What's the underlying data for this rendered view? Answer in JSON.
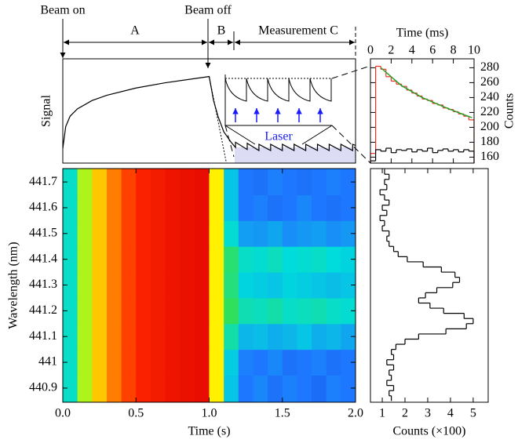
{
  "chart_data": [
    {
      "type": "line",
      "ylabel": "Signal",
      "annotations": {
        "beam_on": "Beam on",
        "beam_off": "Beam off",
        "a": "A",
        "b": "B",
        "c": "Measurement C"
      },
      "inset_label": "Laser",
      "color": "#000000",
      "xlim": [
        0,
        2
      ],
      "ylim": [
        0,
        1
      ],
      "x": [
        0,
        0.02,
        0.05,
        0.1,
        0.2,
        0.3,
        0.5,
        0.7,
        0.9,
        1.0,
        1.03,
        1.06,
        1.1,
        1.15,
        1.18,
        1.18,
        1.26,
        1.26,
        1.34,
        1.34,
        1.42,
        1.42,
        1.5,
        1.5,
        1.58,
        1.58,
        1.66,
        1.66,
        1.74,
        1.74,
        1.82,
        1.82,
        1.9,
        1.9,
        1.98,
        1.98,
        2.0
      ],
      "values": [
        0.14,
        0.35,
        0.45,
        0.52,
        0.6,
        0.65,
        0.72,
        0.77,
        0.81,
        0.83,
        0.6,
        0.45,
        0.3,
        0.2,
        0.15,
        0.2,
        0.13,
        0.19,
        0.12,
        0.18,
        0.12,
        0.18,
        0.12,
        0.18,
        0.12,
        0.18,
        0.12,
        0.18,
        0.12,
        0.18,
        0.12,
        0.18,
        0.12,
        0.18,
        0.12,
        0.18,
        0.17
      ]
    },
    {
      "type": "histogram",
      "xlabel": "Time (ms)",
      "ylabel": "Counts",
      "xaxis": "top",
      "yaxis": "right",
      "xlim": [
        0,
        10
      ],
      "ylim": [
        152,
        292
      ],
      "xticks": [
        0,
        2,
        4,
        6,
        8,
        10
      ],
      "yticks": [
        160,
        180,
        200,
        220,
        240,
        260,
        280
      ],
      "bins": [
        0,
        0.5,
        1,
        1.5,
        2,
        2.5,
        3,
        3.5,
        4,
        4.5,
        5,
        5.5,
        6,
        6.5,
        7,
        7.5,
        8,
        8.5,
        9,
        9.5,
        10
      ],
      "series": [
        {
          "color": "#e8321e",
          "values": [
            165,
            282,
            278,
            268,
            262,
            258,
            255,
            250,
            246,
            242,
            238,
            236,
            232,
            230,
            226,
            224,
            221,
            218,
            215,
            210
          ]
        },
        {
          "color": "#000000",
          "values": [
            155,
            170,
            168,
            172,
            166,
            170,
            169,
            171,
            167,
            170,
            168,
            172,
            166,
            169,
            171,
            168,
            170,
            167,
            170,
            168
          ]
        }
      ],
      "fit": {
        "color": "#2ca02c",
        "x": [
          1,
          3,
          5,
          7,
          9,
          9.8
        ],
        "values": [
          280,
          256,
          240,
          228,
          217,
          213
        ]
      }
    },
    {
      "type": "heatmap",
      "xlabel": "Time (s)",
      "ylabel": "Wavelength (nm)",
      "colormap": "jet",
      "xlim": [
        0,
        2
      ],
      "ylim": [
        440.845,
        441.752
      ],
      "xticks": [
        {
          "value": 0,
          "label": "0.0"
        },
        {
          "value": 0.5,
          "label": "0.5"
        },
        {
          "value": 1,
          "label": "1.0"
        },
        {
          "value": 1.5,
          "label": "1.5"
        },
        {
          "value": 2,
          "label": "2.0"
        }
      ],
      "yticks": [
        440.9,
        441.0,
        441.1,
        441.2,
        441.3,
        441.4,
        441.5,
        441.6,
        441.7
      ],
      "x_edges": [
        0,
        0.1,
        0.2,
        0.3,
        0.4,
        0.5,
        0.6,
        0.7,
        0.8,
        0.9,
        1.0,
        1.1,
        1.2,
        1.3,
        1.4,
        1.5,
        1.6,
        1.7,
        1.8,
        1.9,
        2.0
      ],
      "y_edges": [
        440.845,
        440.95,
        441.05,
        441.15,
        441.25,
        441.35,
        441.45,
        441.55,
        441.65,
        441.752
      ],
      "z": [
        [
          0.35,
          0.55,
          0.68,
          0.78,
          0.85,
          0.9,
          0.92,
          0.94,
          0.95,
          0.96,
          0.62,
          0.3,
          0.2,
          0.22,
          0.19,
          0.21,
          0.2,
          0.18,
          0.21,
          0.2
        ],
        [
          0.35,
          0.55,
          0.68,
          0.78,
          0.85,
          0.9,
          0.92,
          0.94,
          0.95,
          0.96,
          0.62,
          0.31,
          0.21,
          0.2,
          0.22,
          0.19,
          0.2,
          0.21,
          0.19,
          0.2
        ],
        [
          0.35,
          0.55,
          0.68,
          0.78,
          0.85,
          0.9,
          0.92,
          0.94,
          0.95,
          0.96,
          0.62,
          0.38,
          0.28,
          0.29,
          0.27,
          0.28,
          0.3,
          0.27,
          0.28,
          0.26
        ],
        [
          0.35,
          0.55,
          0.68,
          0.78,
          0.85,
          0.9,
          0.92,
          0.94,
          0.95,
          0.96,
          0.62,
          0.45,
          0.37,
          0.36,
          0.38,
          0.35,
          0.36,
          0.37,
          0.35,
          0.34
        ],
        [
          0.35,
          0.55,
          0.68,
          0.78,
          0.85,
          0.9,
          0.92,
          0.94,
          0.95,
          0.96,
          0.62,
          0.42,
          0.32,
          0.31,
          0.3,
          0.32,
          0.31,
          0.3,
          0.29,
          0.3
        ],
        [
          0.35,
          0.55,
          0.68,
          0.78,
          0.85,
          0.9,
          0.92,
          0.94,
          0.95,
          0.96,
          0.62,
          0.43,
          0.35,
          0.34,
          0.36,
          0.33,
          0.34,
          0.35,
          0.33,
          0.32
        ],
        [
          0.35,
          0.55,
          0.68,
          0.78,
          0.85,
          0.9,
          0.92,
          0.94,
          0.95,
          0.96,
          0.62,
          0.34,
          0.25,
          0.24,
          0.26,
          0.23,
          0.24,
          0.25,
          0.23,
          0.24
        ],
        [
          0.35,
          0.55,
          0.68,
          0.78,
          0.85,
          0.9,
          0.92,
          0.94,
          0.95,
          0.96,
          0.62,
          0.3,
          0.2,
          0.21,
          0.19,
          0.2,
          0.22,
          0.2,
          0.19,
          0.2
        ],
        [
          0.35,
          0.55,
          0.68,
          0.78,
          0.85,
          0.9,
          0.92,
          0.94,
          0.95,
          0.96,
          0.62,
          0.3,
          0.2,
          0.19,
          0.21,
          0.2,
          0.19,
          0.2,
          0.21,
          0.2
        ]
      ]
    },
    {
      "type": "step",
      "xlabel": "Counts (×100)",
      "color": "#000000",
      "xlim": [
        0.48,
        5.66
      ],
      "ylim": [
        440.845,
        441.752
      ],
      "xticks": [
        1,
        2,
        3,
        4,
        5
      ],
      "y": [
        440.86,
        440.88,
        440.9,
        440.92,
        440.94,
        440.96,
        440.98,
        441.0,
        441.02,
        441.04,
        441.06,
        441.08,
        441.1,
        441.12,
        441.14,
        441.16,
        441.18,
        441.2,
        441.22,
        441.24,
        441.26,
        441.28,
        441.3,
        441.32,
        441.34,
        441.36,
        441.38,
        441.4,
        441.42,
        441.44,
        441.46,
        441.48,
        441.5,
        441.52,
        441.54,
        441.56,
        441.58,
        441.6,
        441.62,
        441.64,
        441.66,
        441.68,
        441.7,
        441.72,
        441.74
      ],
      "values": [
        1.4,
        1.3,
        1.5,
        1.2,
        1.4,
        1.3,
        1.5,
        1.2,
        1.5,
        1.4,
        1.6,
        2.0,
        2.6,
        3.8,
        4.7,
        5.0,
        4.6,
        3.7,
        3.1,
        2.6,
        2.9,
        3.4,
        4.1,
        4.4,
        4.2,
        3.6,
        2.8,
        2.1,
        1.7,
        1.5,
        1.3,
        1.2,
        1.3,
        1.0,
        1.1,
        0.9,
        1.2,
        1.0,
        1.3,
        1.1,
        0.9,
        1.2,
        1.1,
        1.3,
        1.1
      ]
    }
  ]
}
